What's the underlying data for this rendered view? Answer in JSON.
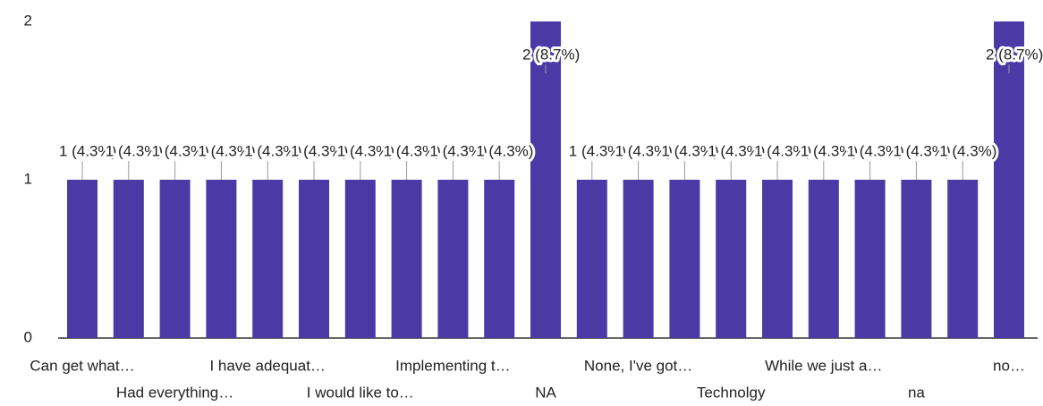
{
  "chart_data": {
    "type": "bar",
    "categories": [
      "Can get what…",
      null,
      "Had everything…",
      null,
      "I have adequat…",
      null,
      "I would like to…",
      null,
      "Implementing t…",
      null,
      "NA",
      null,
      "None, I've got…",
      null,
      "Technolgy",
      null,
      "While we just a…",
      null,
      "na",
      null,
      "no…"
    ],
    "values": [
      1,
      1,
      1,
      1,
      1,
      1,
      1,
      1,
      1,
      1,
      2,
      1,
      1,
      1,
      1,
      1,
      1,
      1,
      1,
      1,
      2
    ],
    "value_labels": [
      "1 (4.3%)",
      "1 (4.3%)",
      "1 (4.3%)",
      "1 (4.3%)",
      "1 (4.3%)",
      "1 (4.3%)",
      "1 (4.3%)",
      "1 (4.3%)",
      "1 (4.3%)",
      "1 (4.3%)",
      "2 (8.7%)",
      "1 (4.3%)",
      "1 (4.3%)",
      "1 (4.3%)",
      "1 (4.3%)",
      "1 (4.3%)",
      "1 (4.3%)",
      "1 (4.3%)",
      "1 (4.3%)",
      "1 (4.3%)",
      "2 (8.7%)"
    ],
    "color": "#4b3aa6",
    "ylim": [
      0,
      2
    ],
    "yticks": [
      0,
      1,
      2
    ]
  }
}
